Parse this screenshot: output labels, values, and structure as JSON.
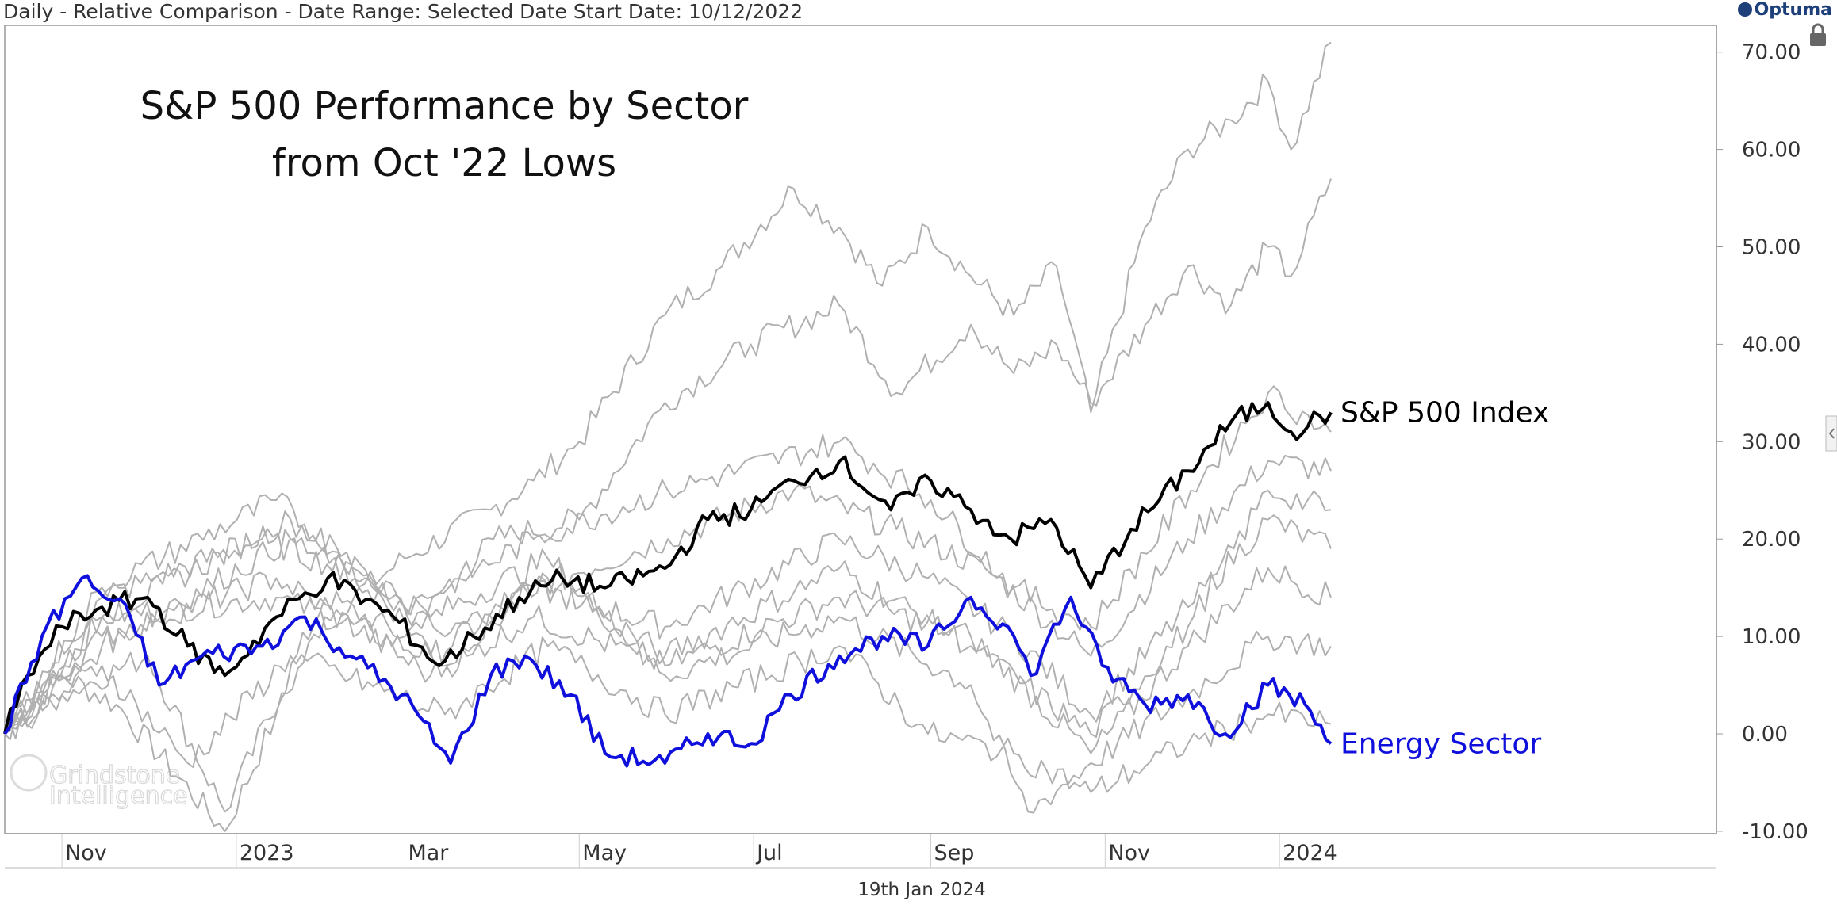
{
  "header": {
    "info": "Daily - Relative Comparison - Date Range: Selected Date  Start Date: 10/12/2022",
    "logo_text": "Optuma"
  },
  "footer": {
    "date": "19th Jan 2024"
  },
  "watermark": {
    "line1": "Grindstone",
    "line2": "Intelligence"
  },
  "chart_data": {
    "type": "line",
    "title": [
      "S&P 500 Performance by Sector",
      "from Oct '22 Lows"
    ],
    "xlabel": "",
    "ylabel": "",
    "x_range": [
      "2022-10-12",
      "2024-01-19"
    ],
    "ylim": [
      -10,
      72
    ],
    "y_ticks": [
      "70.00",
      "60.00",
      "50.00",
      "40.00",
      "30.00",
      "20.00",
      "10.00",
      "0.00",
      "-10.00"
    ],
    "x_ticks": [
      {
        "label": "Nov",
        "date": "2022-11-01"
      },
      {
        "label": "2023",
        "date": "2023-01-01"
      },
      {
        "label": "Mar",
        "date": "2023-03-01"
      },
      {
        "label": "May",
        "date": "2023-05-01"
      },
      {
        "label": "Jul",
        "date": "2023-07-01"
      },
      {
        "label": "Sep",
        "date": "2023-09-01"
      },
      {
        "label": "Nov",
        "date": "2023-11-01"
      },
      {
        "label": "2024",
        "date": "2024-01-01"
      }
    ],
    "grid": false,
    "series": [
      {
        "name": "S&P 500 Index",
        "color": "#000000",
        "highlight": true,
        "points": [
          [
            "2022-10-12",
            0
          ],
          [
            "2022-10-20",
            6
          ],
          [
            "2022-11-01",
            11
          ],
          [
            "2022-11-15",
            13
          ],
          [
            "2022-12-01",
            14
          ],
          [
            "2022-12-15",
            9
          ],
          [
            "2022-12-28",
            6
          ],
          [
            "2023-01-15",
            12
          ],
          [
            "2023-02-02",
            16
          ],
          [
            "2023-02-25",
            12
          ],
          [
            "2023-03-13",
            7
          ],
          [
            "2023-03-25",
            10
          ],
          [
            "2023-04-10",
            14
          ],
          [
            "2023-04-25",
            16
          ],
          [
            "2023-05-10",
            15
          ],
          [
            "2023-05-31",
            17
          ],
          [
            "2023-06-15",
            22
          ],
          [
            "2023-06-30",
            23
          ],
          [
            "2023-07-15",
            26
          ],
          [
            "2023-07-31",
            28
          ],
          [
            "2023-08-18",
            23
          ],
          [
            "2023-09-01",
            26
          ],
          [
            "2023-09-15",
            23
          ],
          [
            "2023-09-29",
            20
          ],
          [
            "2023-10-13",
            22
          ],
          [
            "2023-10-27",
            15
          ],
          [
            "2023-11-10",
            21
          ],
          [
            "2023-11-30",
            27
          ],
          [
            "2023-12-15",
            32
          ],
          [
            "2023-12-28",
            34
          ],
          [
            "2024-01-05",
            31
          ],
          [
            "2024-01-19",
            33
          ]
        ]
      },
      {
        "name": "Energy Sector",
        "color": "#1010dd",
        "highlight": true,
        "points": [
          [
            "2022-10-12",
            0
          ],
          [
            "2022-10-25",
            10
          ],
          [
            "2022-11-08",
            16
          ],
          [
            "2022-11-25",
            12
          ],
          [
            "2022-12-05",
            5
          ],
          [
            "2022-12-20",
            8
          ],
          [
            "2023-01-10",
            9
          ],
          [
            "2023-01-25",
            12
          ],
          [
            "2023-02-10",
            8
          ],
          [
            "2023-02-28",
            4
          ],
          [
            "2023-03-17",
            -3
          ],
          [
            "2023-03-31",
            6
          ],
          [
            "2023-04-12",
            8
          ],
          [
            "2023-04-28",
            4
          ],
          [
            "2023-05-10",
            -2
          ],
          [
            "2023-05-31",
            -3
          ],
          [
            "2023-06-15",
            0
          ],
          [
            "2023-06-30",
            -1
          ],
          [
            "2023-07-14",
            4
          ],
          [
            "2023-07-31",
            8
          ],
          [
            "2023-08-15",
            10
          ],
          [
            "2023-08-31",
            9
          ],
          [
            "2023-09-15",
            14
          ],
          [
            "2023-09-28",
            11
          ],
          [
            "2023-10-06",
            6
          ],
          [
            "2023-10-20",
            14
          ],
          [
            "2023-10-31",
            7
          ],
          [
            "2023-11-15",
            3
          ],
          [
            "2023-11-30",
            4
          ],
          [
            "2023-12-13",
            0
          ],
          [
            "2023-12-28",
            5
          ],
          [
            "2024-01-10",
            3
          ],
          [
            "2024-01-19",
            -1
          ]
        ]
      },
      {
        "color": "#b0b0b0",
        "highlight": false,
        "points": [
          [
            "2022-10-12",
            0
          ],
          [
            "2022-11-01",
            6
          ],
          [
            "2022-11-20",
            3
          ],
          [
            "2022-12-28",
            -10
          ],
          [
            "2023-01-15",
            2
          ],
          [
            "2023-02-01",
            12
          ],
          [
            "2023-03-01",
            18
          ],
          [
            "2023-03-31",
            23
          ],
          [
            "2023-04-15",
            26
          ],
          [
            "2023-05-01",
            30
          ],
          [
            "2023-05-31",
            43
          ],
          [
            "2023-06-20",
            48
          ],
          [
            "2023-07-15",
            56
          ],
          [
            "2023-07-31",
            52
          ],
          [
            "2023-08-15",
            46
          ],
          [
            "2023-08-31",
            52
          ],
          [
            "2023-09-15",
            47
          ],
          [
            "2023-09-30",
            43
          ],
          [
            "2023-10-15",
            48
          ],
          [
            "2023-10-27",
            33
          ],
          [
            "2023-11-15",
            52
          ],
          [
            "2023-11-30",
            60
          ],
          [
            "2023-12-15",
            63
          ],
          [
            "2023-12-28",
            67
          ],
          [
            "2024-01-05",
            60
          ],
          [
            "2024-01-19",
            71
          ]
        ]
      },
      {
        "color": "#b0b0b0",
        "highlight": false,
        "points": [
          [
            "2022-10-12",
            0
          ],
          [
            "2022-11-01",
            4
          ],
          [
            "2022-12-01",
            8
          ],
          [
            "2022-12-28",
            -8
          ],
          [
            "2023-02-01",
            14
          ],
          [
            "2023-03-01",
            10
          ],
          [
            "2023-04-01",
            20
          ],
          [
            "2023-05-01",
            22
          ],
          [
            "2023-05-31",
            34
          ],
          [
            "2023-06-30",
            40
          ],
          [
            "2023-07-31",
            44
          ],
          [
            "2023-08-20",
            35
          ],
          [
            "2023-09-15",
            42
          ],
          [
            "2023-09-30",
            37
          ],
          [
            "2023-10-15",
            40
          ],
          [
            "2023-10-27",
            34
          ],
          [
            "2023-11-15",
            42
          ],
          [
            "2023-11-30",
            48
          ],
          [
            "2023-12-15",
            44
          ],
          [
            "2023-12-28",
            50
          ],
          [
            "2024-01-05",
            47
          ],
          [
            "2024-01-19",
            57
          ]
        ]
      },
      {
        "color": "#b0b0b0",
        "highlight": false,
        "points": [
          [
            "2022-10-12",
            0
          ],
          [
            "2022-11-15",
            12
          ],
          [
            "2023-01-15",
            14
          ],
          [
            "2023-03-10",
            8
          ],
          [
            "2023-04-15",
            15
          ],
          [
            "2023-06-01",
            20
          ],
          [
            "2023-07-15",
            25
          ],
          [
            "2023-08-20",
            21
          ],
          [
            "2023-09-20",
            17
          ],
          [
            "2023-10-27",
            8
          ],
          [
            "2023-11-30",
            20
          ],
          [
            "2023-12-28",
            28
          ],
          [
            "2024-01-19",
            27
          ]
        ]
      },
      {
        "color": "#b0b0b0",
        "highlight": false,
        "points": [
          [
            "2022-10-12",
            0
          ],
          [
            "2022-11-15",
            14
          ],
          [
            "2023-01-10",
            20
          ],
          [
            "2023-02-15",
            16
          ],
          [
            "2023-03-15",
            7
          ],
          [
            "2023-04-15",
            15
          ],
          [
            "2023-05-31",
            11
          ],
          [
            "2023-07-31",
            20
          ],
          [
            "2023-08-31",
            16
          ],
          [
            "2023-09-30",
            10
          ],
          [
            "2023-10-27",
            2
          ],
          [
            "2023-11-30",
            13
          ],
          [
            "2023-12-28",
            22
          ],
          [
            "2024-01-19",
            19
          ]
        ]
      },
      {
        "color": "#b0b0b0",
        "highlight": false,
        "points": [
          [
            "2022-10-12",
            0
          ],
          [
            "2022-11-15",
            10
          ],
          [
            "2023-01-15",
            16
          ],
          [
            "2023-03-10",
            6
          ],
          [
            "2023-04-15",
            12
          ],
          [
            "2023-05-31",
            7
          ],
          [
            "2023-07-31",
            14
          ],
          [
            "2023-09-15",
            10
          ],
          [
            "2023-10-27",
            -2
          ],
          [
            "2023-11-30",
            9
          ],
          [
            "2023-12-28",
            17
          ],
          [
            "2024-01-19",
            14
          ]
        ]
      },
      {
        "color": "#b0b0b0",
        "highlight": false,
        "points": [
          [
            "2022-10-12",
            0
          ],
          [
            "2022-11-15",
            12
          ],
          [
            "2023-01-20",
            22
          ],
          [
            "2023-03-10",
            12
          ],
          [
            "2023-04-20",
            18
          ],
          [
            "2023-05-31",
            6
          ],
          [
            "2023-07-31",
            12
          ],
          [
            "2023-09-15",
            5
          ],
          [
            "2023-10-05",
            -8
          ],
          [
            "2023-10-27",
            -3
          ],
          [
            "2023-11-30",
            4
          ],
          [
            "2023-12-28",
            10
          ],
          [
            "2024-01-19",
            9
          ]
        ]
      },
      {
        "color": "#b0b0b0",
        "highlight": false,
        "points": [
          [
            "2022-10-12",
            0
          ],
          [
            "2022-11-15",
            9
          ],
          [
            "2023-01-20",
            20
          ],
          [
            "2023-03-15",
            10
          ],
          [
            "2023-04-20",
            16
          ],
          [
            "2023-05-31",
            8
          ],
          [
            "2023-07-31",
            17
          ],
          [
            "2023-09-15",
            9
          ],
          [
            "2023-10-27",
            0
          ],
          [
            "2023-11-30",
            11
          ],
          [
            "2023-12-28",
            25
          ],
          [
            "2024-01-19",
            23
          ]
        ]
      },
      {
        "color": "#b0b0b0",
        "highlight": false,
        "points": [
          [
            "2022-10-12",
            0
          ],
          [
            "2022-11-15",
            15
          ],
          [
            "2023-01-15",
            24
          ],
          [
            "2023-03-01",
            13
          ],
          [
            "2023-04-15",
            20
          ],
          [
            "2023-06-01",
            25
          ],
          [
            "2023-07-31",
            30
          ],
          [
            "2023-09-01",
            24
          ],
          [
            "2023-09-30",
            15
          ],
          [
            "2023-10-27",
            11
          ],
          [
            "2023-12-01",
            25
          ],
          [
            "2023-12-28",
            35
          ],
          [
            "2024-01-19",
            31
          ]
        ]
      },
      {
        "color": "#b0b0b0",
        "highlight": false,
        "points": [
          [
            "2022-10-12",
            0
          ],
          [
            "2022-11-15",
            7
          ],
          [
            "2022-12-15",
            -3
          ],
          [
            "2023-01-20",
            8
          ],
          [
            "2023-03-15",
            2
          ],
          [
            "2023-04-20",
            9
          ],
          [
            "2023-05-31",
            2
          ],
          [
            "2023-07-31",
            9
          ],
          [
            "2023-08-31",
            0
          ],
          [
            "2023-09-30",
            -2
          ],
          [
            "2023-10-27",
            -6
          ],
          [
            "2023-11-30",
            -1
          ],
          [
            "2023-12-28",
            2
          ],
          [
            "2024-01-19",
            1
          ]
        ]
      }
    ]
  }
}
